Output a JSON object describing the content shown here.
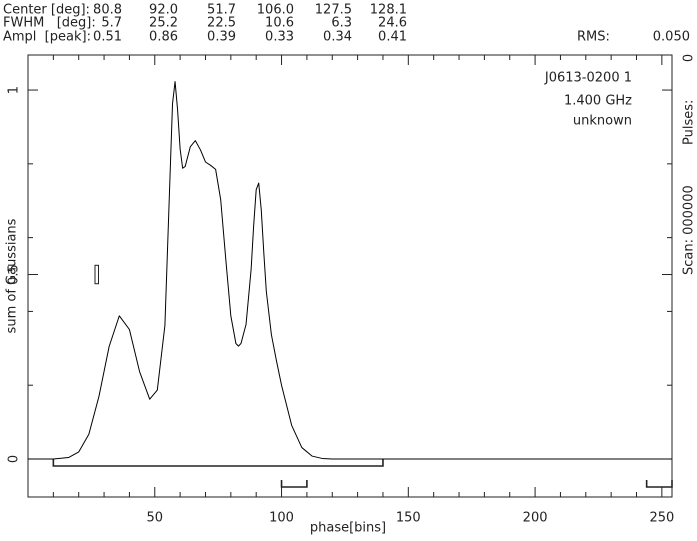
{
  "header": {
    "rows": [
      {
        "label": "Center [deg]:",
        "values": [
          "80.8",
          "92.0",
          "51.7",
          "106.0",
          "127.5",
          "128.1"
        ]
      },
      {
        "label": "FWHM   [deg]:",
        "values": [
          "5.7",
          "25.2",
          "22.5",
          "10.6",
          "6.3",
          "24.6"
        ]
      },
      {
        "label": "Ampl  [peak]:",
        "values": [
          "0.51",
          "0.86",
          "0.39",
          "0.33",
          "0.34",
          "0.41"
        ]
      }
    ],
    "rms_label": "RMS:",
    "rms": {
      "value": 0.05,
      "label": "0.050"
    }
  },
  "side": {
    "pulses_label": "Pulses:",
    "pulses": "0",
    "scan": "Scan: 000000"
  },
  "chart_data": {
    "type": "line",
    "xlabel": "phase[bins]",
    "ylabel": "sum of Gaussians",
    "annotations": [
      "J0613-0200 1",
      "1.400 GHz",
      "unknown"
    ],
    "color": "#000000",
    "x": [
      0,
      10,
      16,
      20,
      24,
      28,
      32,
      36,
      40,
      44,
      48,
      51,
      54,
      56,
      57,
      58,
      59,
      60,
      61,
      62,
      64,
      66,
      68,
      70,
      72,
      74,
      76,
      78,
      80,
      82,
      83,
      84,
      86,
      88,
      89,
      90,
      91,
      92,
      93,
      94,
      96,
      98,
      100,
      104,
      108,
      112,
      116,
      120,
      254
    ],
    "values": [
      0,
      0,
      0.004,
      0.019,
      0.067,
      0.17,
      0.305,
      0.388,
      0.351,
      0.237,
      0.162,
      0.187,
      0.362,
      0.763,
      0.963,
      1.023,
      0.946,
      0.84,
      0.788,
      0.793,
      0.846,
      0.863,
      0.838,
      0.805,
      0.796,
      0.785,
      0.703,
      0.542,
      0.388,
      0.313,
      0.306,
      0.313,
      0.365,
      0.514,
      0.632,
      0.73,
      0.748,
      0.675,
      0.559,
      0.454,
      0.337,
      0.266,
      0.2,
      0.091,
      0.031,
      0.008,
      0.0015,
      0,
      0
    ],
    "xlim": [
      0,
      254
    ],
    "ylim": [
      -0.103,
      1.095
    ],
    "xticks": [
      50,
      100,
      150,
      200,
      250
    ],
    "yticks": [
      0,
      0.5,
      1
    ],
    "xminor": [
      10,
      20,
      30,
      40,
      60,
      70,
      80,
      90,
      110,
      120,
      130,
      140,
      160,
      170,
      180,
      190,
      210,
      220,
      230,
      240
    ],
    "yminor": [
      0.2,
      0.4,
      0.6,
      0.8
    ],
    "windows": [
      {
        "start": 10,
        "end": 140
      },
      {
        "start": 100,
        "end": 110
      },
      {
        "start": 244,
        "end": 254
      }
    ]
  }
}
